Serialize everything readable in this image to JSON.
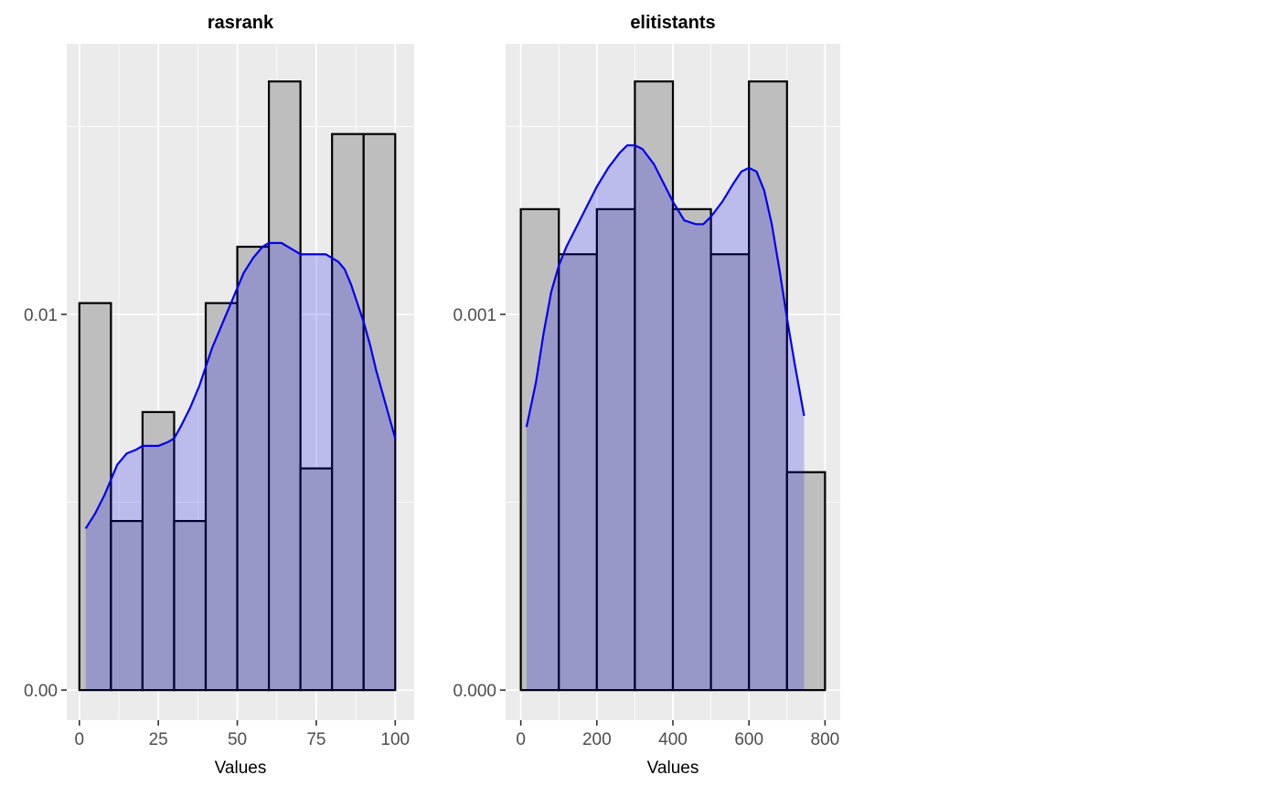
{
  "chart_data": [
    {
      "type": "bar",
      "subtype": "histogram-with-density",
      "title": "rasrank",
      "xlabel": "Values",
      "ylabel": "",
      "xlim": [
        -4,
        106
      ],
      "ylim": [
        -0.0008,
        0.0172
      ],
      "x_ticks": [
        0,
        25,
        50,
        75,
        100
      ],
      "x_tick_labels": [
        "0",
        "25",
        "50",
        "75",
        "100"
      ],
      "y_ticks": [
        0.0,
        0.01
      ],
      "y_tick_labels": [
        "0.00",
        "0.01"
      ],
      "y_minor_gridlines": [
        0.005,
        0.015
      ],
      "x_minor_gridlines": [
        12.5,
        37.5,
        62.5,
        87.5
      ],
      "grid": true,
      "bins": [
        {
          "x0": 0,
          "x1": 10,
          "density": 0.0103
        },
        {
          "x0": 10,
          "x1": 20,
          "density": 0.0045
        },
        {
          "x0": 20,
          "x1": 30,
          "density": 0.0074
        },
        {
          "x0": 30,
          "x1": 40,
          "density": 0.0045
        },
        {
          "x0": 40,
          "x1": 50,
          "density": 0.0103
        },
        {
          "x0": 50,
          "x1": 60,
          "density": 0.0118
        },
        {
          "x0": 60,
          "x1": 70,
          "density": 0.0162
        },
        {
          "x0": 70,
          "x1": 80,
          "density": 0.0059
        },
        {
          "x0": 80,
          "x1": 90,
          "density": 0.0148
        },
        {
          "x0": 90,
          "x1": 100,
          "density": 0.0148
        }
      ],
      "density_curve": {
        "x": [
          2,
          5,
          8,
          10,
          12,
          15,
          18,
          20,
          22,
          25,
          28,
          30,
          32,
          35,
          38,
          40,
          42,
          45,
          48,
          50,
          52,
          55,
          58,
          60,
          62,
          64,
          66,
          68,
          70,
          72,
          74,
          76,
          78,
          80,
          82,
          84,
          86,
          88,
          90,
          92,
          94,
          96,
          98,
          100
        ],
        "y": [
          0.0043,
          0.0047,
          0.0052,
          0.0056,
          0.006,
          0.0063,
          0.0064,
          0.0065,
          0.0065,
          0.0065,
          0.0066,
          0.0067,
          0.007,
          0.0075,
          0.0081,
          0.0086,
          0.0091,
          0.0097,
          0.0103,
          0.0107,
          0.0111,
          0.0115,
          0.0118,
          0.0119,
          0.0119,
          0.0119,
          0.0118,
          0.0117,
          0.0116,
          0.0116,
          0.0116,
          0.0116,
          0.0116,
          0.0115,
          0.0114,
          0.0112,
          0.0108,
          0.0103,
          0.0098,
          0.0092,
          0.0085,
          0.0079,
          0.0073,
          0.0067
        ]
      },
      "colors": {
        "bar_fill": "#bebebe",
        "bar_stroke": "#000000",
        "density_line": "#0000ee",
        "density_fill": "rgba(0,0,238,0.2)",
        "panel_bg": "#ebebeb",
        "grid": "#ffffff"
      }
    },
    {
      "type": "bar",
      "subtype": "histogram-with-density",
      "title": "elitistants",
      "xlabel": "Values",
      "ylabel": "",
      "xlim": [
        -40,
        840
      ],
      "ylim": [
        -8e-05,
        0.00172
      ],
      "x_ticks": [
        0,
        200,
        400,
        600,
        800
      ],
      "x_tick_labels": [
        "0",
        "200",
        "400",
        "600",
        "800"
      ],
      "y_ticks": [
        0.0,
        0.001
      ],
      "y_tick_labels": [
        "0.000",
        "0.001"
      ],
      "y_minor_gridlines": [
        0.0005,
        0.0015
      ],
      "x_minor_gridlines": [
        100,
        300,
        500,
        700
      ],
      "grid": true,
      "bins": [
        {
          "x0": 0,
          "x1": 100,
          "density": 0.00128
        },
        {
          "x0": 100,
          "x1": 200,
          "density": 0.00116
        },
        {
          "x0": 200,
          "x1": 300,
          "density": 0.00128
        },
        {
          "x0": 300,
          "x1": 400,
          "density": 0.00162
        },
        {
          "x0": 400,
          "x1": 500,
          "density": 0.00128
        },
        {
          "x0": 500,
          "x1": 600,
          "density": 0.00116
        },
        {
          "x0": 600,
          "x1": 700,
          "density": 0.00162
        },
        {
          "x0": 700,
          "x1": 800,
          "density": 0.00058
        }
      ],
      "density_curve": {
        "x": [
          15,
          40,
          60,
          80,
          100,
          120,
          150,
          180,
          200,
          230,
          260,
          280,
          300,
          320,
          350,
          380,
          400,
          430,
          460,
          480,
          500,
          530,
          560,
          580,
          600,
          620,
          640,
          660,
          680,
          700,
          720,
          745
        ],
        "y": [
          0.0007,
          0.00082,
          0.00095,
          0.00106,
          0.00113,
          0.00118,
          0.00124,
          0.0013,
          0.00134,
          0.00139,
          0.00143,
          0.00145,
          0.00145,
          0.00144,
          0.0014,
          0.00134,
          0.0013,
          0.00125,
          0.00124,
          0.00124,
          0.00126,
          0.0013,
          0.00135,
          0.00138,
          0.00139,
          0.00138,
          0.00133,
          0.00124,
          0.00112,
          0.00099,
          0.00087,
          0.00073
        ]
      },
      "colors": {
        "bar_fill": "#bebebe",
        "bar_stroke": "#000000",
        "density_line": "#0000ee",
        "density_fill": "rgba(0,0,238,0.2)",
        "panel_bg": "#ebebeb",
        "grid": "#ffffff"
      }
    }
  ]
}
